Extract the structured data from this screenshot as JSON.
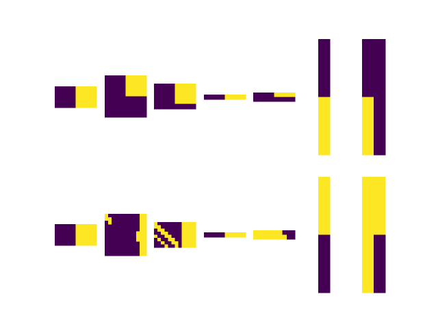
{
  "colors": {
    "low": "#440154",
    "high": "#fde725",
    "background": "#ffffff"
  },
  "chart_data": {
    "type": "heatmap",
    "colormap": "viridis",
    "value_range": [
      0,
      1
    ],
    "axes_visible": false,
    "rows": [
      [
        {
          "grid": [
            [
              0,
              0,
              1,
              1
            ]
          ]
        },
        {
          "grid": [
            [
              0,
              1
            ],
            [
              0,
              0
            ]
          ]
        },
        {
          "grid": [
            [
              0,
              0,
              0,
              0,
              1,
              1,
              1,
              1
            ],
            [
              0,
              0,
              0,
              0,
              1,
              1,
              1,
              1
            ],
            [
              0,
              0,
              0,
              0,
              1,
              1,
              1,
              1
            ],
            [
              0,
              0,
              0,
              0,
              1,
              1,
              1,
              1
            ],
            [
              0,
              0,
              0,
              0,
              1,
              1,
              1,
              1
            ],
            [
              0,
              0,
              0,
              0,
              1,
              1,
              1,
              1
            ],
            [
              0,
              0,
              0,
              0,
              1,
              1,
              1,
              1
            ],
            [
              0,
              0,
              0,
              0,
              1,
              1,
              1,
              1
            ],
            [
              0,
              0,
              0,
              0,
              0,
              0,
              0,
              0
            ],
            [
              0,
              0,
              0,
              0,
              0,
              0,
              0,
              0
            ]
          ]
        },
        {
          "grid": [
            [
              0,
              0,
              0,
              0,
              0,
              1,
              1,
              1,
              1,
              1
            ],
            [
              0,
              0,
              0,
              0,
              0,
              1,
              1,
              1,
              1,
              1
            ]
          ]
        },
        {
          "grid": [
            [
              0,
              0,
              0,
              0,
              0,
              1,
              1,
              1,
              1,
              1
            ],
            [
              0,
              0,
              0,
              0,
              0,
              0,
              0,
              0,
              0,
              0
            ]
          ]
        },
        {
          "grid": [
            [
              0
            ],
            [
              1
            ]
          ]
        },
        {
          "grid": [
            [
              0,
              0
            ],
            [
              1,
              0
            ]
          ]
        }
      ],
      [
        {
          "grid": [
            [
              0,
              0,
              1,
              1
            ]
          ]
        },
        {
          "grid": [
            [
              1,
              0,
              0,
              0,
              0,
              0,
              0,
              0,
              0,
              0,
              1,
              1
            ],
            [
              1,
              1,
              0,
              0,
              0,
              0,
              0,
              0,
              0,
              0,
              1,
              1
            ],
            [
              0,
              1,
              0,
              0,
              0,
              0,
              0,
              0,
              0,
              0,
              1,
              1
            ],
            [
              0,
              0,
              0,
              0,
              0,
              0,
              0,
              0,
              0,
              0,
              1,
              1
            ],
            [
              0,
              0,
              0,
              0,
              0,
              0,
              0,
              0,
              0,
              0,
              1,
              1
            ],
            [
              0,
              0,
              0,
              0,
              0,
              0,
              0,
              0,
              0,
              1,
              1,
              1
            ],
            [
              0,
              0,
              0,
              0,
              0,
              0,
              0,
              0,
              0,
              1,
              1,
              1
            ],
            [
              0,
              0,
              0,
              0,
              0,
              0,
              0,
              0,
              0,
              1,
              1,
              1
            ],
            [
              0,
              0,
              0,
              0,
              0,
              0,
              0,
              0,
              0,
              0,
              1,
              1
            ],
            [
              0,
              0,
              0,
              0,
              0,
              0,
              0,
              0,
              0,
              0,
              1,
              1
            ],
            [
              0,
              0,
              0,
              0,
              0,
              0,
              0,
              0,
              0,
              0,
              1,
              1
            ],
            [
              0,
              0,
              0,
              0,
              0,
              0,
              0,
              0,
              0,
              0,
              1,
              1
            ]
          ]
        },
        {
          "grid": [
            [
              1,
              0,
              0,
              0,
              0,
              0,
              0,
              0,
              1,
              1,
              1,
              1
            ],
            [
              1,
              1,
              0,
              0,
              0,
              0,
              0,
              0,
              1,
              1,
              1,
              1
            ],
            [
              0,
              1,
              1,
              0,
              0,
              0,
              0,
              0,
              1,
              1,
              1,
              1
            ],
            [
              0,
              0,
              1,
              1,
              0,
              0,
              0,
              0,
              1,
              1,
              1,
              1
            ],
            [
              1,
              0,
              0,
              1,
              1,
              0,
              0,
              0,
              1,
              1,
              1,
              1
            ],
            [
              0,
              1,
              0,
              0,
              1,
              1,
              0,
              0,
              1,
              1,
              1,
              1
            ],
            [
              0,
              0,
              1,
              0,
              0,
              1,
              1,
              0,
              1,
              1,
              1,
              1
            ],
            [
              0,
              0,
              0,
              1,
              0,
              0,
              1,
              0,
              1,
              1,
              1,
              1
            ]
          ]
        },
        {
          "grid": [
            [
              0,
              0,
              0,
              0,
              0,
              1,
              1,
              1,
              1,
              1
            ],
            [
              0,
              0,
              0,
              0,
              0,
              1,
              1,
              1,
              1,
              1
            ]
          ]
        },
        {
          "grid": [
            [
              1,
              1,
              1,
              1,
              1,
              1,
              1,
              0,
              0,
              0
            ],
            [
              1,
              1,
              1,
              1,
              1,
              1,
              1,
              0,
              0,
              0
            ],
            [
              1,
              1,
              1,
              1,
              1,
              1,
              1,
              1,
              0,
              0
            ],
            [
              1,
              1,
              1,
              1,
              1,
              1,
              1,
              1,
              0,
              0
            ]
          ]
        },
        {
          "grid": [
            [
              1
            ],
            [
              0
            ]
          ]
        },
        {
          "grid": [
            [
              1,
              1
            ],
            [
              1,
              0
            ]
          ]
        }
      ]
    ]
  }
}
